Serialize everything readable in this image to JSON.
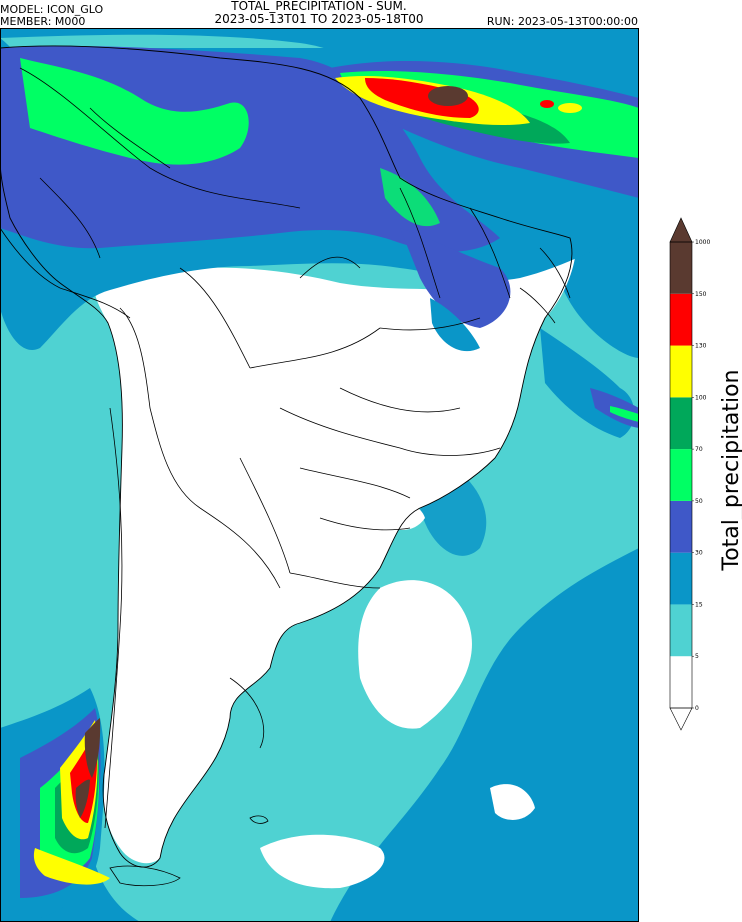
{
  "header": {
    "model": "MODEL: ICON_GLO",
    "member": "MEMBER: M000",
    "title_line1": "TOTAL_PRECIPITATION - SUM.",
    "title_line2": "2023-05-13T01 TO 2023-05-18T00",
    "run": "RUN: 2023-05-13T00:00:00"
  },
  "colorbar": {
    "label": "Total_precipitation",
    "levels": [
      "0",
      "5",
      "15",
      "30",
      "50",
      "70",
      "100",
      "130",
      "150",
      "1000"
    ],
    "colors": [
      "#ffffff",
      "#4fd2d2",
      "#0a96c8",
      "#3f58c8",
      "#00ff64",
      "#00a85a",
      "#ffff00",
      "#ff0000",
      "#5a3a30"
    ],
    "over_color": "#5a3a30",
    "under_color": "#ffffff"
  },
  "map": {
    "region": "South America",
    "palette": {
      "c5": "#4fd2d2",
      "c15": "#0a96c8",
      "c30": "#3f58c8",
      "c50": "#00ff64",
      "c70": "#00a85a",
      "c100": "#ffff00",
      "c130": "#ff0000",
      "c150": "#5a3a30"
    }
  }
}
